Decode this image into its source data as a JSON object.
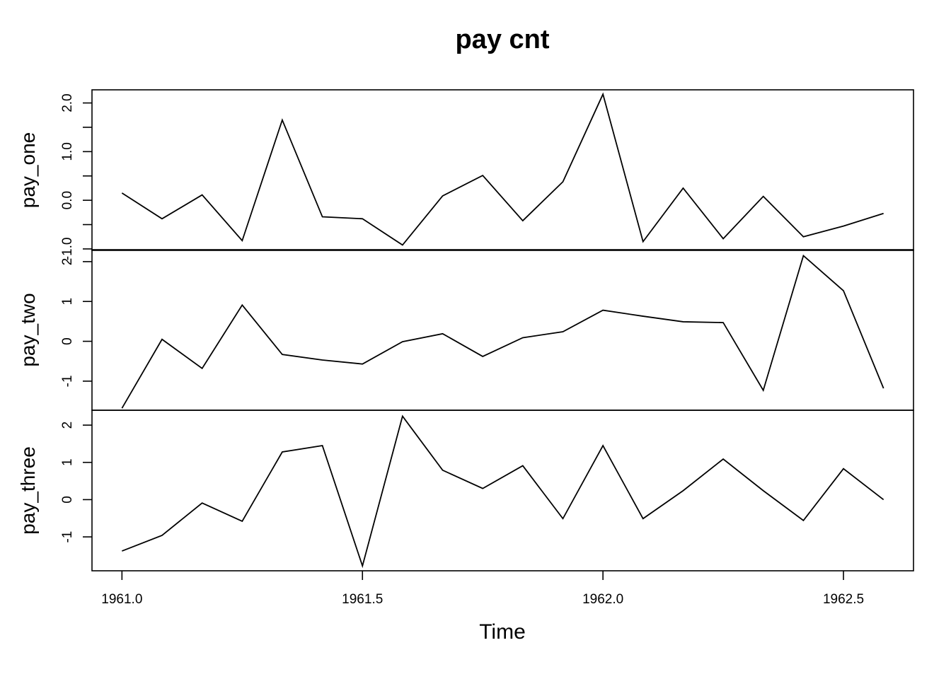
{
  "chart_data": {
    "type": "line",
    "title": "pay cnt",
    "xlabel": "Time",
    "x": [
      1961.0,
      1961.0833,
      1961.1667,
      1961.25,
      1961.3333,
      1961.4167,
      1961.5,
      1961.5833,
      1961.6667,
      1961.75,
      1961.8333,
      1961.9167,
      1962.0,
      1962.0833,
      1962.1667,
      1962.25,
      1962.3333,
      1962.4167,
      1962.5,
      1962.5833
    ],
    "xlim": [
      1960.9377,
      1962.6456
    ],
    "xticks": [
      1961.0,
      1961.5,
      1962.0,
      1962.5
    ],
    "xtick_labels": [
      "1961.0",
      "1961.5",
      "1962.0",
      "1962.5"
    ],
    "panels": [
      {
        "name": "pay_one",
        "ylim": [
          -1.03,
          2.27
        ],
        "yticks": [
          -1.0,
          -0.5,
          0.0,
          0.5,
          1.0,
          1.5,
          2.0
        ],
        "ytick_labels": [
          "-1.0",
          "",
          "0.0",
          "",
          "1.0",
          "",
          "2.0"
        ],
        "values": [
          0.15,
          -0.38,
          0.11,
          -0.83,
          1.65,
          -0.34,
          -0.38,
          -0.92,
          0.09,
          0.51,
          -0.42,
          0.38,
          2.18,
          -0.85,
          0.25,
          -0.79,
          0.08,
          -0.75,
          -0.53,
          -0.27
        ]
      },
      {
        "name": "pay_two",
        "ylim": [
          -1.73,
          2.3
        ],
        "yticks": [
          -1,
          0,
          1,
          2
        ],
        "ytick_labels": [
          "-1",
          "0",
          "1",
          "2"
        ],
        "values": [
          -1.68,
          0.05,
          -0.68,
          0.91,
          -0.33,
          -0.47,
          -0.57,
          -0.01,
          0.19,
          -0.38,
          0.09,
          0.24,
          0.78,
          0.63,
          0.49,
          0.47,
          -1.23,
          2.15,
          1.27,
          -1.18
        ]
      },
      {
        "name": "pay_three",
        "ylim": [
          -1.91,
          2.4
        ],
        "yticks": [
          -1,
          0,
          1,
          2
        ],
        "ytick_labels": [
          "-1",
          "0",
          "1",
          "2"
        ],
        "values": [
          -1.38,
          -0.96,
          -0.09,
          -0.58,
          1.28,
          1.45,
          -1.78,
          2.24,
          0.79,
          0.3,
          0.91,
          -0.51,
          1.45,
          -0.51,
          0.24,
          1.09,
          0.24,
          -0.56,
          0.83,
          0.0
        ]
      }
    ]
  }
}
